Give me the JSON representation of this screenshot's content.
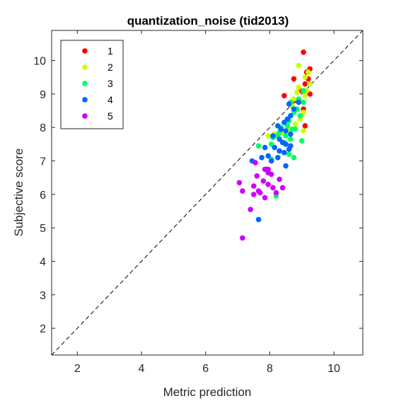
{
  "chart_data": {
    "type": "scatter",
    "title": "quantization_noise (tid2013)",
    "xlabel": "Metric prediction",
    "ylabel": "Subjective score",
    "xlim": [
      1.2,
      10.9
    ],
    "ylim": [
      1.2,
      10.9
    ],
    "xticks": [
      2,
      4,
      6,
      8,
      10
    ],
    "yticks": [
      2,
      3,
      4,
      5,
      6,
      7,
      8,
      9,
      10
    ],
    "grid": false,
    "legend_position": "top-left",
    "reference_line": "diagonal dashed y = x",
    "series": [
      {
        "name": "1",
        "color": "#ff0000",
        "points": [
          [
            9.05,
            10.25
          ],
          [
            9.15,
            9.65
          ],
          [
            9.2,
            9.45
          ],
          [
            9.25,
            9.75
          ],
          [
            8.75,
            9.45
          ],
          [
            9.1,
            9.3
          ],
          [
            9.25,
            9.0
          ],
          [
            8.95,
            9.1
          ],
          [
            8.45,
            8.95
          ],
          [
            9.05,
            8.55
          ],
          [
            8.95,
            8.25
          ],
          [
            9.1,
            8.05
          ],
          [
            8.75,
            8.8
          ]
        ]
      },
      {
        "name": "2",
        "color": "#ccff00",
        "points": [
          [
            8.9,
            9.85
          ],
          [
            9.2,
            9.65
          ],
          [
            9.1,
            9.5
          ],
          [
            9.25,
            9.3
          ],
          [
            9.15,
            9.1
          ],
          [
            8.9,
            9.2
          ],
          [
            8.85,
            9.05
          ],
          [
            8.75,
            8.85
          ],
          [
            9.1,
            8.95
          ],
          [
            8.95,
            8.8
          ],
          [
            8.7,
            8.65
          ],
          [
            9.05,
            8.45
          ],
          [
            8.95,
            8.25
          ],
          [
            8.8,
            8.1
          ],
          [
            8.6,
            7.9
          ],
          [
            9.05,
            7.9
          ],
          [
            8.15,
            7.8
          ],
          [
            7.95,
            7.75
          ],
          [
            8.4,
            7.85
          ]
        ]
      },
      {
        "name": "3",
        "color": "#00ff66",
        "points": [
          [
            9.05,
            9.1
          ],
          [
            8.9,
            8.85
          ],
          [
            8.65,
            8.75
          ],
          [
            9.05,
            8.75
          ],
          [
            8.75,
            8.45
          ],
          [
            8.85,
            8.55
          ],
          [
            8.95,
            8.35
          ],
          [
            8.6,
            8.2
          ],
          [
            8.55,
            8.05
          ],
          [
            8.35,
            8.0
          ],
          [
            8.7,
            7.95
          ],
          [
            8.8,
            7.95
          ],
          [
            8.3,
            7.85
          ],
          [
            8.25,
            7.75
          ],
          [
            8.1,
            7.7
          ],
          [
            8.5,
            7.75
          ],
          [
            8.45,
            7.55
          ],
          [
            8.65,
            7.65
          ],
          [
            9.0,
            7.6
          ],
          [
            8.05,
            7.5
          ],
          [
            7.65,
            7.45
          ],
          [
            8.6,
            7.2
          ],
          [
            8.75,
            7.1
          ],
          [
            8.05,
            7.05
          ],
          [
            8.2,
            5.95
          ]
        ]
      },
      {
        "name": "4",
        "color": "#0066ff",
        "points": [
          [
            8.9,
            8.75
          ],
          [
            8.6,
            8.7
          ],
          [
            8.75,
            8.55
          ],
          [
            8.65,
            8.35
          ],
          [
            8.55,
            8.25
          ],
          [
            8.45,
            8.15
          ],
          [
            8.25,
            8.05
          ],
          [
            8.35,
            7.95
          ],
          [
            8.5,
            7.9
          ],
          [
            8.65,
            7.8
          ],
          [
            8.1,
            7.75
          ],
          [
            8.3,
            7.65
          ],
          [
            8.4,
            7.55
          ],
          [
            8.5,
            7.5
          ],
          [
            8.65,
            7.45
          ],
          [
            7.85,
            7.4
          ],
          [
            8.15,
            7.4
          ],
          [
            8.3,
            7.3
          ],
          [
            8.45,
            7.25
          ],
          [
            8.6,
            7.35
          ],
          [
            7.75,
            7.1
          ],
          [
            7.95,
            7.15
          ],
          [
            8.25,
            7.1
          ],
          [
            8.05,
            7.0
          ],
          [
            7.45,
            7.0
          ],
          [
            8.5,
            6.85
          ],
          [
            7.9,
            6.75
          ],
          [
            7.65,
            5.25
          ]
        ]
      },
      {
        "name": "5",
        "color": "#cc00ff",
        "points": [
          [
            7.55,
            6.95
          ],
          [
            7.85,
            6.75
          ],
          [
            7.95,
            6.65
          ],
          [
            8.05,
            6.6
          ],
          [
            7.6,
            6.55
          ],
          [
            8.3,
            6.45
          ],
          [
            7.05,
            6.35
          ],
          [
            7.8,
            6.4
          ],
          [
            7.95,
            6.3
          ],
          [
            7.5,
            6.25
          ],
          [
            8.1,
            6.2
          ],
          [
            7.65,
            6.1
          ],
          [
            8.4,
            6.2
          ],
          [
            7.15,
            6.1
          ],
          [
            7.7,
            6.05
          ],
          [
            8.2,
            6.05
          ],
          [
            7.5,
            6.0
          ],
          [
            7.85,
            5.9
          ],
          [
            7.4,
            5.55
          ],
          [
            7.15,
            4.7
          ],
          [
            7.95,
            6.75
          ]
        ]
      }
    ]
  }
}
